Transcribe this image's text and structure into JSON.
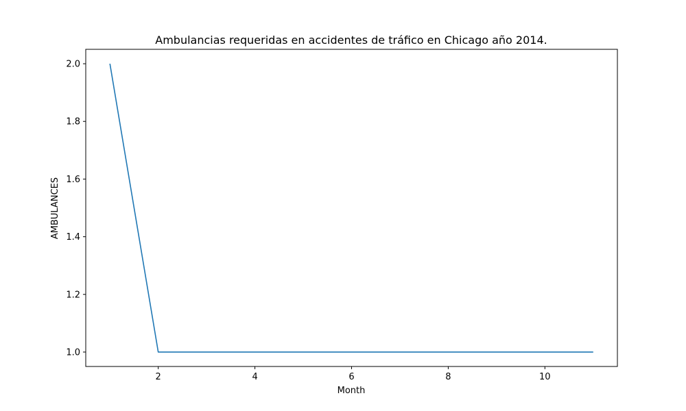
{
  "chart_data": {
    "type": "line",
    "title": "Ambulancias requeridas en accidentes de tráfico en Chicago año 2014.",
    "xlabel": "Month",
    "ylabel": "AMBULANCES",
    "xlim": [
      0.5,
      11.5
    ],
    "ylim": [
      0.95,
      2.05
    ],
    "x_ticks": [
      2,
      4,
      6,
      8,
      10
    ],
    "x_tick_labels": [
      "2",
      "4",
      "6",
      "8",
      "10"
    ],
    "y_ticks": [
      1.0,
      1.2,
      1.4,
      1.6,
      1.8,
      2.0
    ],
    "y_tick_labels": [
      "1.0",
      "1.2",
      "1.4",
      "1.6",
      "1.8",
      "2.0"
    ],
    "grid": false,
    "series": [
      {
        "color": "#1f77b4",
        "x": [
          1,
          2,
          3,
          4,
          5,
          6,
          7,
          8,
          9,
          10,
          11
        ],
        "y": [
          2,
          1,
          1,
          1,
          1,
          1,
          1,
          1,
          1,
          1,
          1
        ]
      }
    ]
  }
}
